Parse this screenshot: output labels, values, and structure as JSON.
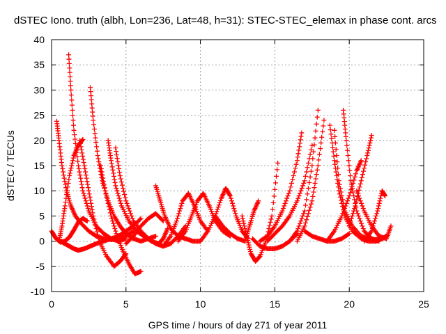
{
  "chart_data": {
    "type": "scatter",
    "title": "dSTEC Iono. truth (albh, Lon=236, Lat=48, h=31): STEC-STEC_elemax in phase cont. arcs",
    "xlabel": "GPS time / hours of day 271 of year 2011",
    "ylabel": "dSTEC  / TECUs",
    "xlim": [
      0,
      25
    ],
    "ylim": [
      -10,
      40
    ],
    "xticks": [
      0,
      5,
      10,
      15,
      20,
      25
    ],
    "yticks": [
      -10,
      -5,
      0,
      5,
      10,
      15,
      20,
      25,
      30,
      35,
      40
    ],
    "grid": true,
    "marker": "+",
    "color": "#ff0000",
    "series": [
      {
        "x": [
          0.0,
          0.3,
          0.6,
          0.9,
          1.2,
          1.5,
          1.8,
          2.1,
          2.4
        ],
        "values": [
          2.0,
          0.5,
          -0.2,
          0.0,
          0.8,
          2.2,
          3.8,
          4.5,
          4.0
        ]
      },
      {
        "x": [
          0.35,
          0.5,
          0.7,
          1.0,
          1.3,
          1.6,
          2.0,
          2.5,
          3.0,
          3.5,
          4.0,
          4.5,
          5.0,
          5.5
        ],
        "values": [
          23.8,
          20.0,
          15.0,
          10.0,
          7.0,
          5.0,
          3.5,
          2.0,
          1.0,
          0.5,
          0.3,
          0.5,
          1.0,
          2.0
        ]
      },
      {
        "x": [
          0.5,
          0.7,
          0.9,
          1.2,
          1.5,
          1.8,
          2.1
        ],
        "values": [
          0.0,
          3.0,
          7.0,
          13.0,
          17.0,
          19.0,
          20.2
        ]
      },
      {
        "x": [
          0.6,
          0.9,
          1.2,
          1.5,
          1.8,
          2.2,
          2.6,
          3.0,
          3.5,
          4.0,
          4.5,
          5.0,
          5.5,
          6.0
        ],
        "values": [
          0.0,
          -0.5,
          -1.0,
          -1.5,
          -1.8,
          -1.5,
          -1.0,
          -0.5,
          0.0,
          0.5,
          1.0,
          2.0,
          3.0,
          4.5
        ]
      },
      {
        "x": [
          1.15,
          1.3,
          1.5,
          1.8,
          2.1,
          2.5,
          3.0,
          3.5,
          4.0,
          4.5,
          5.0
        ],
        "values": [
          37.0,
          30.0,
          22.0,
          15.0,
          10.0,
          6.0,
          3.0,
          1.5,
          0.5,
          0.0,
          0.5
        ]
      },
      {
        "x": [
          1.9,
          2.2,
          2.5,
          2.8,
          3.2,
          3.7,
          4.2,
          4.6,
          5.0
        ],
        "values": [
          20.0,
          15.0,
          10.0,
          5.0,
          0.0,
          -3.0,
          -5.0,
          -4.0,
          -2.5
        ]
      },
      {
        "x": [
          2.6,
          2.8,
          3.1,
          3.4,
          3.8,
          4.2,
          4.6,
          5.0,
          5.5,
          6.0,
          6.5,
          7.0
        ],
        "values": [
          30.5,
          24.0,
          17.0,
          12.0,
          8.0,
          5.0,
          3.0,
          1.5,
          0.5,
          0.0,
          0.5,
          1.0
        ]
      },
      {
        "x": [
          3.3,
          3.6,
          4.0,
          4.4,
          4.8,
          5.2,
          5.6,
          6.0
        ],
        "values": [
          15.0,
          10.0,
          5.0,
          1.0,
          -2.0,
          -4.5,
          -6.5,
          -6.0
        ]
      },
      {
        "x": [
          3.8,
          4.0,
          4.3,
          4.7,
          5.2,
          5.7,
          6.2,
          6.7,
          7.2,
          7.5,
          7.8
        ],
        "values": [
          20.0,
          16.0,
          11.0,
          7.0,
          4.0,
          2.0,
          1.0,
          0.0,
          -0.5,
          0.5,
          2.5
        ]
      },
      {
        "x": [
          4.3,
          4.6,
          5.0,
          5.5,
          6.0,
          6.5,
          7.0,
          7.5,
          8.0,
          8.5,
          9.0
        ],
        "values": [
          18.5,
          13.0,
          8.0,
          4.0,
          2.0,
          0.5,
          -0.5,
          -1.0,
          -0.5,
          1.0,
          3.0
        ]
      },
      {
        "x": [
          5.0,
          5.5,
          6.0,
          6.5,
          7.0,
          7.5
        ],
        "values": [
          -0.5,
          1.0,
          3.0,
          4.5,
          5.5,
          4.0
        ]
      },
      {
        "x": [
          7.0,
          7.3,
          7.6,
          8.0,
          8.5,
          9.0,
          9.5,
          10.0
        ],
        "values": [
          11.0,
          8.0,
          5.0,
          2.5,
          1.0,
          0.5,
          0.0,
          0.0
        ]
      },
      {
        "x": [
          7.5,
          8.0,
          8.4,
          8.8,
          9.2,
          9.6,
          10.0,
          10.5
        ],
        "values": [
          -1.0,
          1.0,
          4.0,
          8.0,
          9.5,
          7.0,
          4.0,
          2.0
        ]
      },
      {
        "x": [
          8.5,
          9.0,
          9.4,
          9.8,
          10.2,
          10.6,
          11.0,
          11.5,
          12.0
        ],
        "values": [
          0.0,
          2.0,
          5.0,
          8.0,
          9.5,
          7.0,
          4.0,
          2.0,
          1.0
        ]
      },
      {
        "x": [
          10.0,
          10.5,
          11.0,
          11.4,
          11.7,
          12.0,
          12.4,
          12.8,
          13.2
        ],
        "values": [
          0.0,
          2.0,
          5.0,
          8.5,
          10.5,
          9.0,
          5.0,
          2.0,
          0.5
        ]
      },
      {
        "x": [
          11.0,
          11.5,
          12.0,
          12.5,
          13.0,
          13.3,
          13.6,
          13.9
        ],
        "values": [
          5.0,
          3.0,
          1.5,
          0.5,
          0.0,
          3.0,
          6.0,
          8.0
        ]
      },
      {
        "x": [
          12.8,
          13.1,
          13.4,
          13.7,
          14.0,
          14.4,
          14.8,
          15.2
        ],
        "values": [
          5.0,
          1.0,
          -2.5,
          -4.0,
          -3.0,
          0.0,
          5.0,
          15.5
        ]
      },
      {
        "x": [
          13.5,
          14.0,
          14.5,
          15.0,
          15.5,
          16.0,
          16.5
        ],
        "values": [
          0.5,
          -1.0,
          -1.5,
          -1.5,
          -1.0,
          0.0,
          1.5
        ]
      },
      {
        "x": [
          14.0,
          14.5,
          15.0,
          15.5,
          16.0,
          16.5,
          16.8
        ],
        "values": [
          0.0,
          1.0,
          3.0,
          6.0,
          10.0,
          16.0,
          21.5
        ]
      },
      {
        "x": [
          14.5,
          15.0,
          15.5,
          16.0,
          16.5,
          17.0,
          17.5
        ],
        "values": [
          0.0,
          1.5,
          3.0,
          5.0,
          8.0,
          12.0,
          19.0
        ]
      },
      {
        "x": [
          16.0,
          16.5,
          17.0,
          17.5,
          17.9
        ],
        "values": [
          0.0,
          2.0,
          6.0,
          15.0,
          26.0
        ]
      },
      {
        "x": [
          16.5,
          17.0,
          17.5,
          17.9,
          18.3
        ],
        "values": [
          0.0,
          3.0,
          8.0,
          15.0,
          24.0
        ]
      },
      {
        "x": [
          17.0,
          17.5,
          18.0,
          18.5,
          19.0,
          19.5,
          20.0
        ],
        "values": [
          2.0,
          1.0,
          0.5,
          0.0,
          0.0,
          0.5,
          1.5
        ]
      },
      {
        "x": [
          18.7,
          19.0,
          19.3,
          19.7,
          20.2,
          20.8,
          21.3,
          21.8,
          22.2
        ],
        "values": [
          23.0,
          16.0,
          10.0,
          5.0,
          2.0,
          0.5,
          0.0,
          0.0,
          0.5
        ]
      },
      {
        "x": [
          19.0,
          19.3,
          19.7,
          20.2,
          20.8,
          21.3,
          21.8,
          22.2,
          22.5
        ],
        "values": [
          22.0,
          12.0,
          6.0,
          3.0,
          1.0,
          0.5,
          0.3,
          0.5,
          1.0
        ]
      },
      {
        "x": [
          19.6,
          19.8,
          20.1,
          20.5,
          21.0,
          21.5,
          22.0
        ],
        "values": [
          26.0,
          20.0,
          12.0,
          6.0,
          2.0,
          0.5,
          0.0
        ]
      },
      {
        "x": [
          18.5,
          19.0,
          19.5,
          20.0,
          20.5,
          20.8
        ],
        "values": [
          0.0,
          2.0,
          5.0,
          9.0,
          14.0,
          16.0
        ]
      },
      {
        "x": [
          20.0,
          20.4,
          20.8,
          21.2,
          21.5
        ],
        "values": [
          3.0,
          7.0,
          12.0,
          17.0,
          21.0
        ]
      },
      {
        "x": [
          20.5,
          21.0,
          21.5,
          22.0,
          22.5,
          22.8
        ],
        "values": [
          10.0,
          6.0,
          3.0,
          1.0,
          0.5,
          3.0
        ]
      },
      {
        "x": [
          21.0,
          21.5,
          21.9,
          22.2,
          22.4
        ],
        "values": [
          0.0,
          2.0,
          6.0,
          10.0,
          9.0
        ]
      }
    ]
  }
}
